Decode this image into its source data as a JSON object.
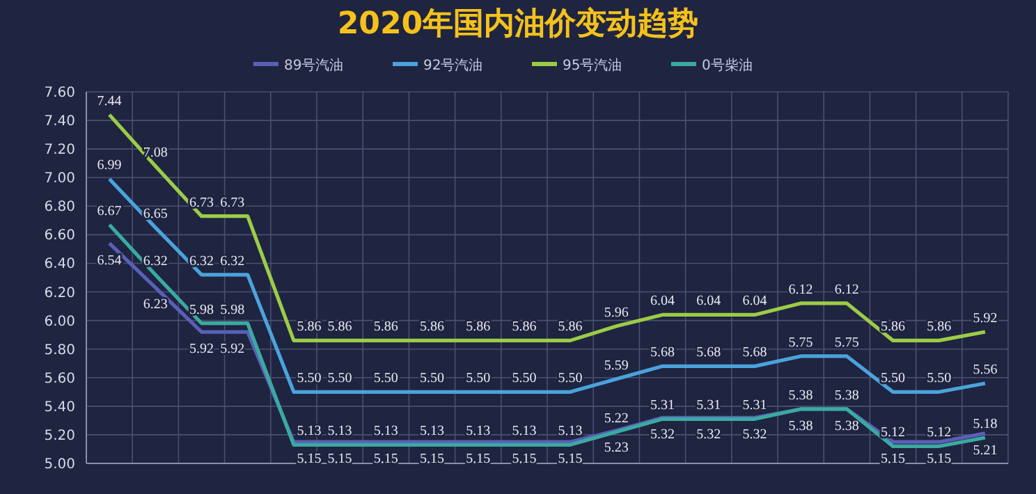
{
  "chart_data": {
    "type": "line",
    "title": "2020年国内油价变动趋势",
    "categories": [
      null,
      null,
      null,
      null,
      null,
      null,
      null,
      null,
      null,
      null,
      null,
      null,
      null,
      null,
      null,
      null,
      null,
      null,
      null,
      null
    ],
    "series": [
      {
        "name": "89号汽油",
        "color": "#5a60b8",
        "values": [
          6.54,
          6.23,
          5.92,
          5.92,
          5.15,
          5.15,
          5.15,
          5.15,
          5.15,
          5.15,
          5.15,
          5.23,
          5.32,
          5.32,
          5.32,
          5.38,
          5.38,
          5.15,
          5.15,
          5.21
        ],
        "value_labels": [
          "6.54",
          "6.23",
          "5.92",
          "5.92",
          "5.15",
          "5.15",
          "5.15",
          "5.15",
          "5.15",
          "5.15",
          "5.15",
          "5.23",
          "5.32",
          "5.32",
          "5.32",
          "5.38",
          "5.38",
          "5.15",
          "5.15",
          "5.21"
        ]
      },
      {
        "name": "92号汽油",
        "color": "#4aa3dc",
        "values": [
          6.99,
          6.65,
          6.32,
          6.32,
          5.5,
          5.5,
          5.5,
          5.5,
          5.5,
          5.5,
          5.5,
          5.59,
          5.68,
          5.68,
          5.68,
          5.75,
          5.75,
          5.5,
          5.5,
          5.56
        ],
        "value_labels": [
          "6.99",
          "6.65",
          "6.32",
          "6.32",
          "5.50",
          "5.50",
          "5.50",
          "5.50",
          "5.50",
          "5.50",
          "5.50",
          "5.59",
          "5.68",
          "5.68",
          "5.68",
          "5.75",
          "5.75",
          "5.50",
          "5.50",
          "5.56"
        ]
      },
      {
        "name": "95号汽油",
        "color": "#9ccc45",
        "values": [
          7.44,
          7.08,
          6.73,
          6.73,
          5.86,
          5.86,
          5.86,
          5.86,
          5.86,
          5.86,
          5.86,
          5.96,
          6.04,
          6.04,
          6.04,
          6.12,
          6.12,
          5.86,
          5.86,
          5.92
        ],
        "value_labels": [
          "7.44",
          "7.08",
          "6.73",
          "6.73",
          "5.86",
          "5.86",
          "5.86",
          "5.86",
          "5.86",
          "5.86",
          "5.86",
          "5.96",
          "6.04",
          "6.04",
          "6.04",
          "6.12",
          "6.12",
          "5.86",
          "5.86",
          "5.92"
        ]
      },
      {
        "name": "0号柴油",
        "color": "#3aaaa0",
        "values": [
          6.67,
          6.32,
          5.98,
          5.98,
          5.13,
          5.13,
          5.13,
          5.13,
          5.13,
          5.13,
          5.13,
          5.22,
          5.31,
          5.31,
          5.31,
          5.38,
          5.38,
          5.12,
          5.12,
          5.18
        ],
        "value_labels": [
          "6.67",
          "6.32",
          "5.98",
          "5.98",
          "5.13",
          "5.13",
          "5.13",
          "5.13",
          "5.13",
          "5.13",
          "5.13",
          "5.22",
          "5.31",
          "5.31",
          "5.31",
          "5.38",
          "5.38",
          "5.12",
          "5.12",
          "5.18"
        ]
      }
    ],
    "ylim": [
      5,
      7.6
    ],
    "yticks": [
      {
        "value": 5,
        "label": "5.00"
      },
      {
        "value": 5.2,
        "label": "5.20"
      },
      {
        "value": 5.4,
        "label": "5.40"
      },
      {
        "value": 5.6,
        "label": "5.60"
      },
      {
        "value": 5.8,
        "label": "5.80"
      },
      {
        "value": 6,
        "label": "6.00"
      },
      {
        "value": 6.2,
        "label": "6.20"
      },
      {
        "value": 6.4,
        "label": "6.40"
      },
      {
        "value": 6.6,
        "label": "6.60"
      },
      {
        "value": 6.8,
        "label": "6.80"
      },
      {
        "value": 7,
        "label": "7.00"
      },
      {
        "value": 7.2,
        "label": "7.20"
      },
      {
        "value": 7.4,
        "label": "7.40"
      },
      {
        "value": 7.6,
        "label": "7.60"
      }
    ],
    "grid": true,
    "legend": "top",
    "marker": "none",
    "line_style": "solid"
  }
}
